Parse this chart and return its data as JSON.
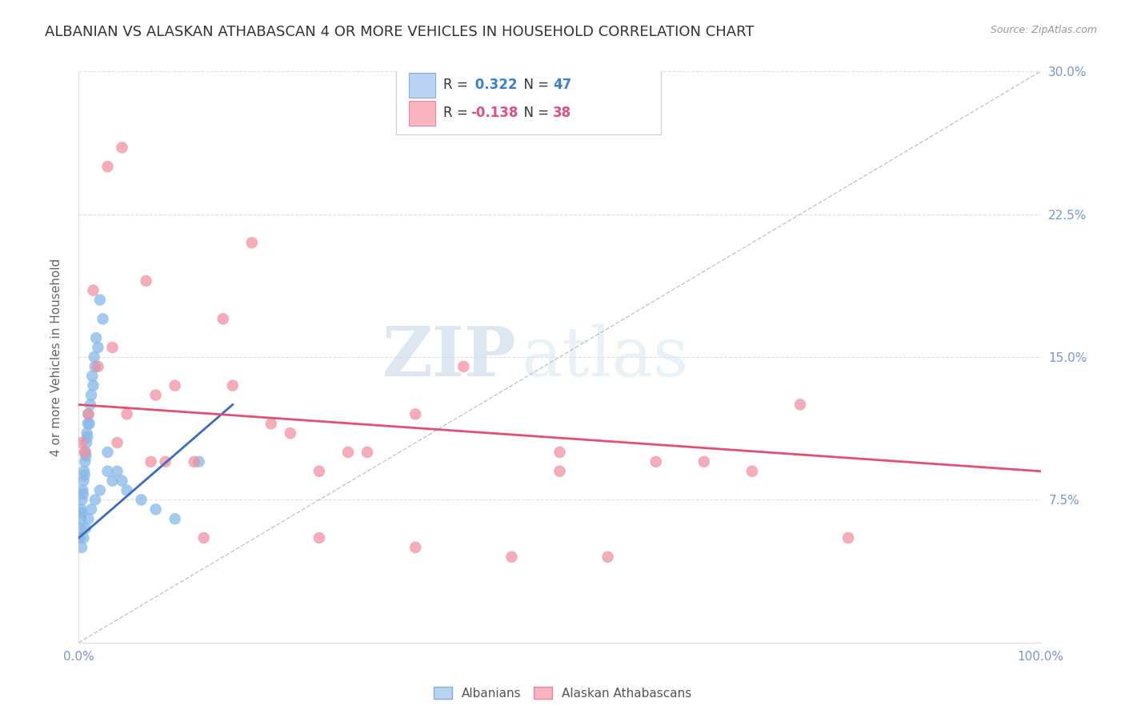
{
  "title": "ALBANIAN VS ALASKAN ATHABASCAN 4 OR MORE VEHICLES IN HOUSEHOLD CORRELATION CHART",
  "source": "Source: ZipAtlas.com",
  "ylabel": "4 or more Vehicles in Household",
  "xlim": [
    0,
    100
  ],
  "ylim": [
    0,
    30
  ],
  "watermark_zip": "ZIP",
  "watermark_atlas": "atlas",
  "albanian_color": "#85b8e8",
  "athabascan_color": "#f090a0",
  "albanian_line_color": "#3a6bbf",
  "athabascan_line_color": "#e05070",
  "background_color": "#ffffff",
  "grid_color": "#cccccc",
  "title_color": "#333333",
  "axis_color": "#7799cc",
  "title_fontsize": 13,
  "axis_label_fontsize": 11,
  "albanian_x": [
    0.1,
    0.15,
    0.2,
    0.25,
    0.3,
    0.35,
    0.4,
    0.45,
    0.5,
    0.55,
    0.6,
    0.65,
    0.7,
    0.75,
    0.8,
    0.85,
    0.9,
    0.95,
    1.0,
    1.1,
    1.2,
    1.3,
    1.4,
    1.5,
    1.6,
    1.7,
    1.8,
    2.0,
    2.2,
    2.5,
    3.0,
    3.5,
    4.0,
    5.0,
    6.5,
    8.0,
    10.0,
    12.5,
    0.3,
    0.5,
    0.7,
    1.0,
    1.3,
    1.7,
    2.2,
    3.0,
    4.5
  ],
  "albanian_y": [
    5.5,
    6.0,
    6.5,
    7.0,
    6.8,
    7.5,
    8.0,
    7.8,
    8.5,
    9.0,
    8.8,
    9.5,
    10.0,
    9.8,
    10.5,
    11.0,
    10.8,
    11.5,
    12.0,
    11.5,
    12.5,
    13.0,
    14.0,
    13.5,
    15.0,
    14.5,
    16.0,
    15.5,
    18.0,
    17.0,
    10.0,
    8.5,
    9.0,
    8.0,
    7.5,
    7.0,
    6.5,
    9.5,
    5.0,
    5.5,
    6.0,
    6.5,
    7.0,
    7.5,
    8.0,
    9.0,
    8.5
  ],
  "athabascan_x": [
    0.3,
    0.6,
    1.5,
    3.0,
    4.5,
    7.0,
    10.0,
    15.0,
    20.0,
    25.0,
    30.0,
    35.0,
    40.0,
    50.0,
    60.0,
    70.0,
    80.0,
    2.0,
    5.0,
    8.0,
    12.0,
    18.0,
    28.0,
    55.0,
    75.0,
    1.0,
    4.0,
    9.0,
    16.0,
    22.0,
    35.0,
    45.0,
    65.0,
    3.5,
    7.5,
    13.0,
    25.0,
    50.0
  ],
  "athabascan_y": [
    10.5,
    10.0,
    18.5,
    25.0,
    26.0,
    19.0,
    13.5,
    17.0,
    11.5,
    5.5,
    10.0,
    12.0,
    14.5,
    10.0,
    9.5,
    9.0,
    5.5,
    14.5,
    12.0,
    13.0,
    9.5,
    21.0,
    10.0,
    4.5,
    12.5,
    12.0,
    10.5,
    9.5,
    13.5,
    11.0,
    5.0,
    4.5,
    9.5,
    15.5,
    9.5,
    5.5,
    9.0,
    9.0
  ],
  "albanian_trend_x": [
    0,
    16
  ],
  "albanian_trend_y": [
    5.5,
    12.5
  ],
  "athabascan_trend_x": [
    0,
    100
  ],
  "athabascan_trend_y": [
    12.5,
    9.0
  ],
  "legend_r1": "R = ",
  "legend_v1": " 0.322",
  "legend_n1": "  N = ",
  "legend_nv1": "47",
  "legend_r2": "R = ",
  "legend_v2": "-0.138",
  "legend_n2": "  N = ",
  "legend_nv2": "38"
}
